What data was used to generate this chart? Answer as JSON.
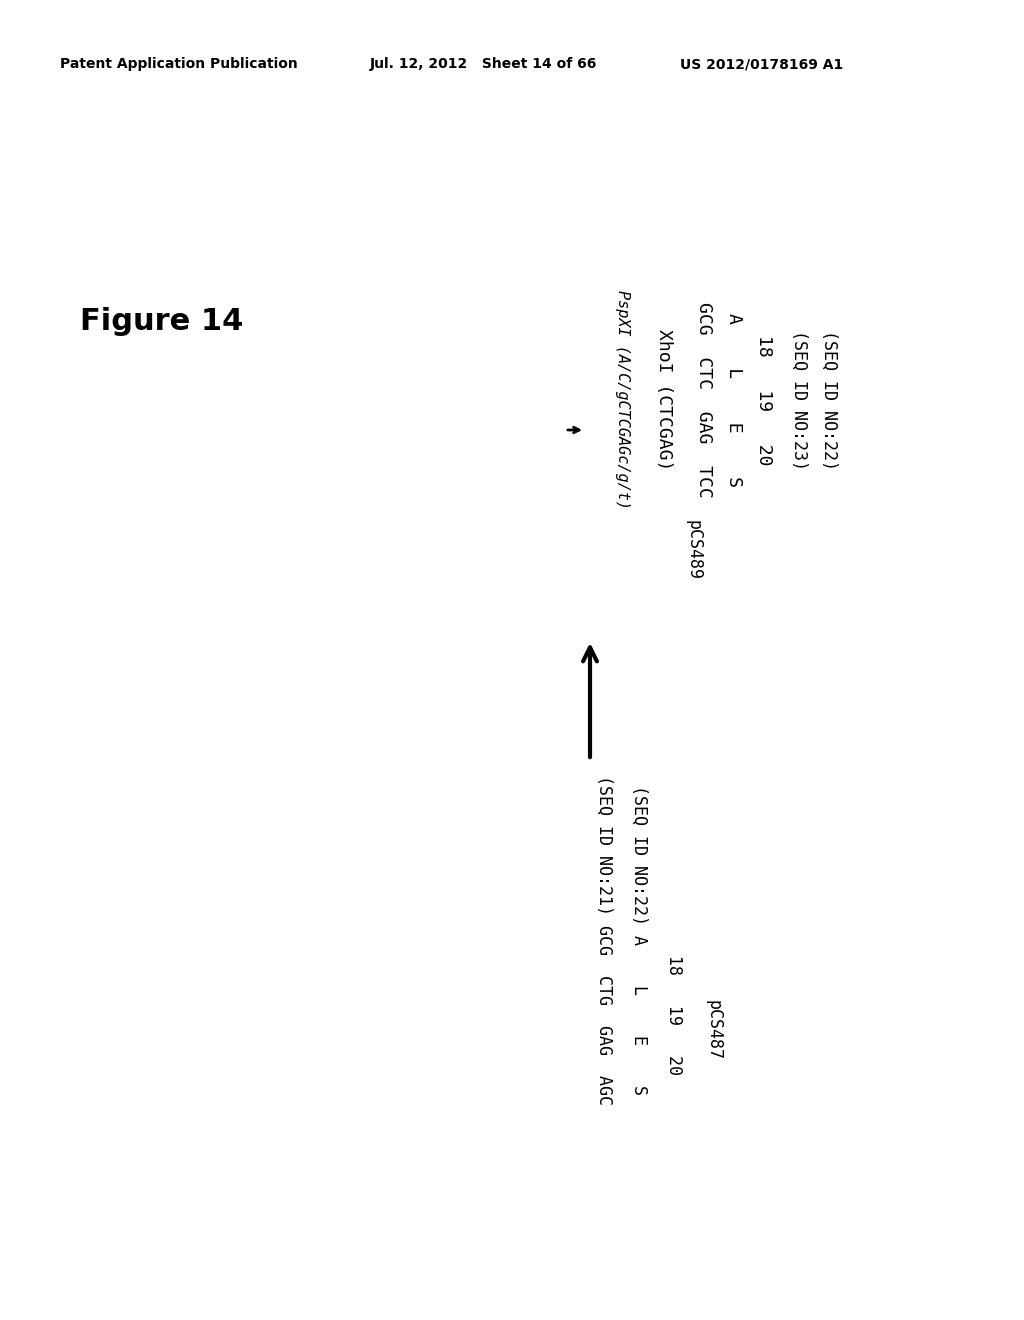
{
  "header_left": "Patent Application Publication",
  "header_mid": "Jul. 12, 2012   Sheet 14 of 66",
  "header_right": "US 2012/0178169 A1",
  "figure_label": "Figure 14",
  "bg_color": "#ffffff",
  "text_color": "#000000",
  "top_block": {
    "xhoi_label": "XhoI (CTCGAG)",
    "pspxi_label": "PspXI (A/C/gCTCGAGc/g/t)",
    "seq_row1": "GCG  CTC  GAG  TCC",
    "seq_row2": "A    L    E    S",
    "seq_row3": "18   19   20",
    "label_right1": "(SEQ ID NO:23)",
    "label_right2": "(SEQ ID NO:22)",
    "pcs_label": "pCS489",
    "arrow_label": "→"
  },
  "bottom_block": {
    "seq_id_row1": "(SEQ ID NO:21) GCG  CTG  GAG  AGC",
    "seq_id_row2": "(SEQ ID NO:22) A    L    E    S",
    "seq_row3": "                18   19   20",
    "pcs_label": "pCS487",
    "label_right1": "(SEQ ID NO:21)",
    "label_right2": "(SEQ ID NO:22)"
  }
}
